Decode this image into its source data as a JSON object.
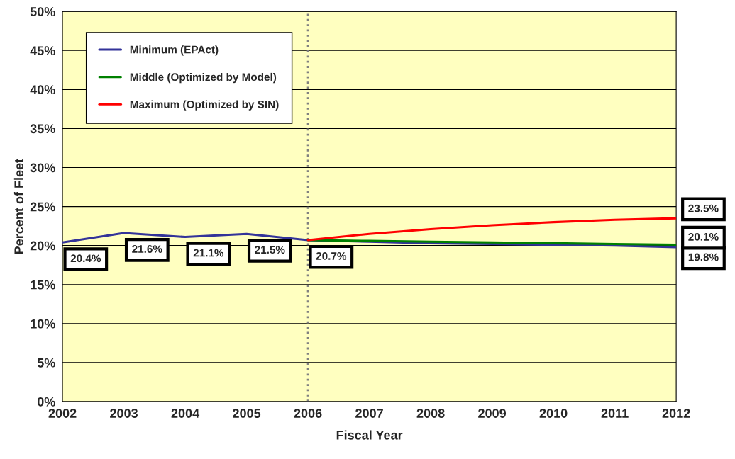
{
  "chart_data": {
    "type": "line",
    "xlabel": "Fiscal Year",
    "ylabel": "Percent of Fleet",
    "categories": [
      "2002",
      "2003",
      "2004",
      "2005",
      "2006",
      "2007",
      "2008",
      "2009",
      "2010",
      "2011",
      "2012"
    ],
    "series": [
      {
        "name": "Minimum (EPAct)",
        "color": "#333399",
        "values": [
          20.4,
          21.6,
          21.1,
          21.5,
          20.7,
          20.5,
          20.3,
          20.2,
          20.1,
          20.0,
          19.8
        ],
        "value_labels": [
          "20.4%",
          "21.6%",
          "21.1%",
          "21.5%",
          "20.7%",
          null,
          null,
          null,
          null,
          null,
          "19.8%"
        ]
      },
      {
        "name": "Middle (Optimized by Model)",
        "color": "#008000",
        "values": [
          null,
          null,
          null,
          null,
          20.7,
          20.6,
          20.5,
          20.4,
          20.3,
          20.2,
          20.1
        ],
        "value_labels": [
          null,
          null,
          null,
          null,
          null,
          null,
          null,
          null,
          null,
          null,
          "20.1%"
        ]
      },
      {
        "name": "Maximum (Optimized by SIN)",
        "color": "#ff0000",
        "values": [
          null,
          null,
          null,
          null,
          20.7,
          21.5,
          22.1,
          22.6,
          23.0,
          23.3,
          23.5
        ],
        "value_labels": [
          null,
          null,
          null,
          null,
          null,
          null,
          null,
          null,
          null,
          null,
          "23.5%"
        ]
      }
    ],
    "ylim": [
      0,
      50
    ],
    "yticks": [
      {
        "value": 0,
        "label": "0%"
      },
      {
        "value": 5,
        "label": "5%"
      },
      {
        "value": 10,
        "label": "10%"
      },
      {
        "value": 15,
        "label": "15%"
      },
      {
        "value": 20,
        "label": "20%"
      },
      {
        "value": 25,
        "label": "25%"
      },
      {
        "value": 30,
        "label": "30%"
      },
      {
        "value": 35,
        "label": "35%"
      },
      {
        "value": 40,
        "label": "40%"
      },
      {
        "value": 45,
        "label": "45%"
      },
      {
        "value": 50,
        "label": "50%"
      }
    ],
    "ref_lines": [
      {
        "axis": "x",
        "value": "2006",
        "color": "#808080",
        "line_style": "dotted"
      }
    ],
    "grid": "y",
    "legend": "top left",
    "marker": "none",
    "line_style": "solid"
  }
}
